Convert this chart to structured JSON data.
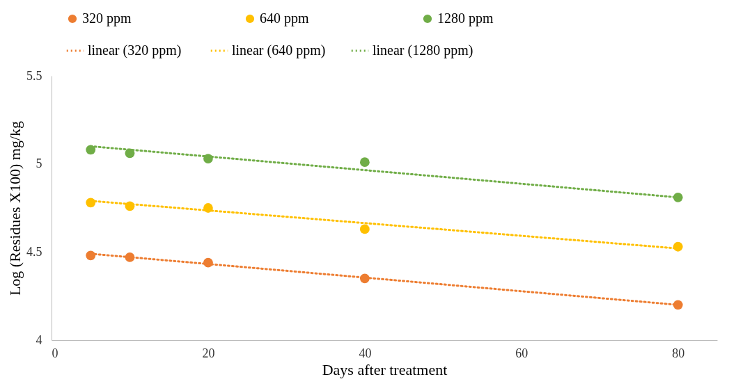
{
  "chart_data": {
    "type": "scatter",
    "xlabel": "Days after treatment",
    "ylabel": "Log (Residues X100) mg/kg",
    "xlim": [
      0,
      85
    ],
    "xticks": [
      0,
      20,
      40,
      60,
      80
    ],
    "ylim": [
      4,
      5.5
    ],
    "yticks": [
      4,
      4.5,
      5,
      5.5
    ],
    "grid": false,
    "legend": "top",
    "series": [
      {
        "name": "320 ppm",
        "type": "scatter",
        "marker": "circle",
        "color": "#ed7d31",
        "x": [
          5,
          10,
          20,
          40,
          80
        ],
        "values": [
          4.48,
          4.47,
          4.44,
          4.35,
          4.2
        ]
      },
      {
        "name": "640 ppm",
        "type": "scatter",
        "marker": "circle",
        "color": "#ffc000",
        "x": [
          5,
          10,
          20,
          40,
          80
        ],
        "values": [
          4.78,
          4.76,
          4.75,
          4.63,
          4.53
        ]
      },
      {
        "name": "1280 ppm",
        "type": "scatter",
        "marker": "circle",
        "color": "#70ad47",
        "x": [
          5,
          10,
          20,
          40,
          80
        ],
        "values": [
          5.08,
          5.06,
          5.03,
          5.01,
          4.81
        ]
      },
      {
        "name": "linear  (320 ppm)",
        "type": "line",
        "line_style": "dotted",
        "color": "#ed7d31",
        "x": [
          5,
          80
        ],
        "values": [
          4.49,
          4.2
        ]
      },
      {
        "name": "linear (640 ppm)",
        "type": "line",
        "line_style": "dotted",
        "color": "#ffc000",
        "x": [
          5,
          80
        ],
        "values": [
          4.79,
          4.52
        ]
      },
      {
        "name": "linear (1280 ppm)",
        "type": "line",
        "line_style": "dotted",
        "color": "#70ad47",
        "x": [
          5,
          80
        ],
        "values": [
          5.1,
          4.81
        ]
      }
    ]
  }
}
